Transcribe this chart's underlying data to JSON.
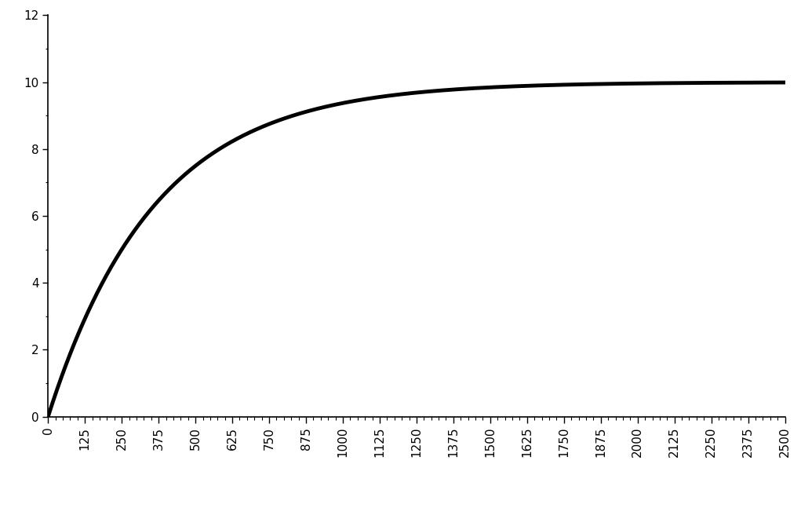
{
  "x_min": 0,
  "x_max": 2500,
  "y_min": 0,
  "y_max": 12,
  "y_ticks": [
    0,
    2,
    4,
    6,
    8,
    10,
    12
  ],
  "x_ticks": [
    0,
    125,
    250,
    375,
    500,
    625,
    750,
    875,
    1000,
    1125,
    1250,
    1375,
    1500,
    1625,
    1750,
    1875,
    2000,
    2125,
    2250,
    2375,
    2500
  ],
  "asymptote": 10.0,
  "time_constant": 361,
  "line_color": "#000000",
  "line_width": 3.5,
  "background_color": "#ffffff",
  "tick_fontsize": 11,
  "minor_tick_interval": 25
}
